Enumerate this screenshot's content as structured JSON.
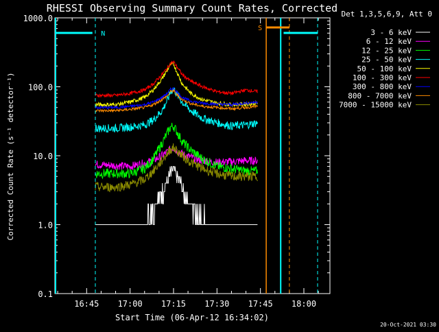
{
  "chart_data": {
    "type": "line",
    "title": "RHESSI Observing Summary Count Rates, Corrected",
    "xlabel": "Start Time (06-Apr-12 16:34:02)",
    "ylabel": "Corrected Count Rate (s⁻¹ detector⁻¹)",
    "yscale": "log",
    "xlim": [
      "16:34:02",
      "18:09"
    ],
    "ylim": [
      0.1,
      1000.0
    ],
    "xticks": [
      "16:45",
      "17:00",
      "17:15",
      "17:30",
      "17:45",
      "18:00"
    ],
    "yticks": [
      "0.1",
      "1.0",
      "10.0",
      "100.0",
      "1000.0"
    ],
    "legend_title": "Det 1,3,5,6,9, Att 0",
    "legend_position": "right",
    "footer": "20-Oct-2021 03:30",
    "x": [
      "16:48",
      "16:55",
      "17:00",
      "17:05",
      "17:08",
      "17:11",
      "17:13",
      "17:14",
      "17:15",
      "17:16",
      "17:18",
      "17:21",
      "17:25",
      "17:30",
      "17:35",
      "17:40",
      "17:44"
    ],
    "series": [
      {
        "name": "3 - 6 keV",
        "color": "#ffffff",
        "values": [
          1.0,
          1.0,
          1.0,
          1.2,
          1.8,
          3.0,
          4.5,
          5.5,
          6.0,
          5.0,
          3.5,
          2.0,
          1.3,
          1.0,
          1.0,
          1.0,
          1.0
        ]
      },
      {
        "name": "6 - 12 keV",
        "color": "#ff00ff",
        "values": [
          7.5,
          7.2,
          7.0,
          7.8,
          8.5,
          10.0,
          11.5,
          12.5,
          13.0,
          12.0,
          10.5,
          9.5,
          8.5,
          8.0,
          8.2,
          8.5,
          8.5
        ]
      },
      {
        "name": "12 - 25 keV",
        "color": "#00ff00",
        "values": [
          5.5,
          5.5,
          5.5,
          6.5,
          9.0,
          15.0,
          22.0,
          26.0,
          27.0,
          23.0,
          16.0,
          12.0,
          9.0,
          7.0,
          6.5,
          6.0,
          6.0
        ]
      },
      {
        "name": "25 - 50 keV",
        "color": "#00ffff",
        "values": [
          25.0,
          25.0,
          26.0,
          28.0,
          33.0,
          45.0,
          65.0,
          85.0,
          95.0,
          80.0,
          60.0,
          45.0,
          35.0,
          30.0,
          27.0,
          28.0,
          30.0
        ]
      },
      {
        "name": "50 - 100 keV",
        "color": "#ffff00",
        "values": [
          55.0,
          55.0,
          60.0,
          70.0,
          90.0,
          130.0,
          180.0,
          210.0,
          215.0,
          170.0,
          110.0,
          80.0,
          65.0,
          58.0,
          55.0,
          56.0,
          58.0
        ]
      },
      {
        "name": "100 - 300 keV",
        "color": "#ff0000",
        "values": [
          75.0,
          75.0,
          80.0,
          90.0,
          110.0,
          150.0,
          190.0,
          220.0,
          230.0,
          200.0,
          150.0,
          120.0,
          100.0,
          85.0,
          80.0,
          90.0,
          85.0
        ]
      },
      {
        "name": "300 - 800 keV",
        "color": "#0000ff",
        "values": [
          50.0,
          50.0,
          52.0,
          55.0,
          60.0,
          70.0,
          82.0,
          92.0,
          95.0,
          85.0,
          70.0,
          62.0,
          58.0,
          56.0,
          55.0,
          58.0,
          60.0
        ]
      },
      {
        "name": "800 - 7000 keV",
        "color": "#ff8c00",
        "values": [
          45.0,
          45.0,
          47.0,
          50.0,
          55.0,
          65.0,
          75.0,
          85.0,
          88.0,
          78.0,
          65.0,
          57.0,
          52.0,
          50.0,
          48.0,
          50.0,
          52.0
        ]
      },
      {
        "name": "7000 - 15000 keV",
        "color": "#8b8b00",
        "values": [
          3.5,
          3.5,
          3.8,
          4.5,
          6.0,
          8.5,
          11.0,
          12.5,
          13.0,
          12.0,
          10.0,
          8.0,
          6.5,
          5.5,
          5.0,
          5.0,
          5.0
        ]
      }
    ],
    "annotations": [
      {
        "label": "N",
        "color": "#00ffff",
        "text_at": "16:48"
      },
      {
        "label": "S",
        "color": "#ff8c00",
        "text_at": "17:47"
      }
    ]
  }
}
